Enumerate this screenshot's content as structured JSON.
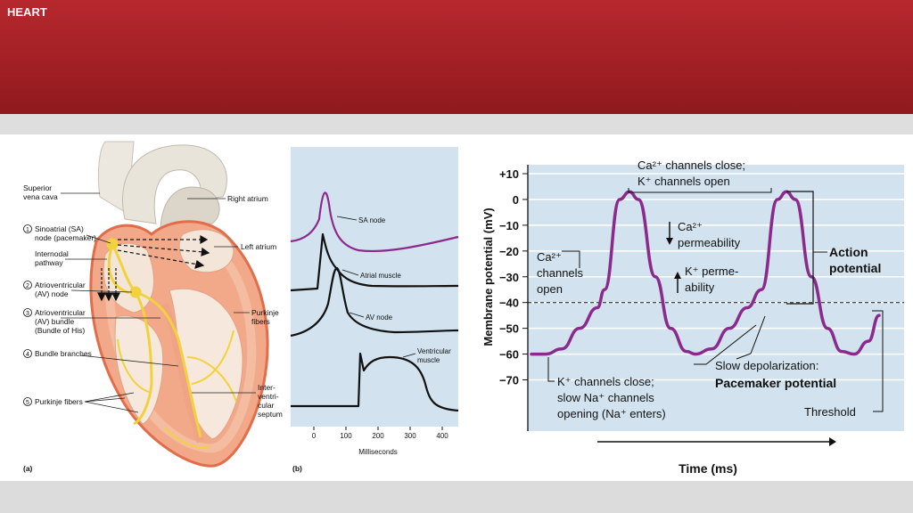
{
  "header": {
    "title": "HEART"
  },
  "panel_a": {
    "label": "(a)",
    "labels": {
      "superior_vena_cava_1": "Superior",
      "superior_vena_cava_2": "vena cava",
      "right_atrium": "Right atrium",
      "sa_num": "1",
      "sa_1": "Sinoatrial (SA)",
      "sa_2": "node (pacemaker)",
      "internodal_1": "Internodal",
      "internodal_2": "pathway",
      "left_atrium": "Left atrium",
      "av_num": "2",
      "av_1": "Atrioventricular",
      "av_2": "(AV) node",
      "bundle_num": "3",
      "bundle_1": "Atrioventricular",
      "bundle_2": "(AV) bundle",
      "bundle_3": "(Bundle of His)",
      "branches_num": "4",
      "branches": "Bundle branches",
      "purkinje_num": "5",
      "purkinje": "Purkinje fibers",
      "purkinje_r_1": "Purkinje",
      "purkinje_r_2": "fibers",
      "septum_1": "Inter-",
      "septum_2": "ventri-",
      "septum_3": "cular",
      "septum_4": "septum"
    }
  },
  "panel_b": {
    "label": "(b)",
    "traces": {
      "sa": "SA node",
      "atrial": "Atrial muscle",
      "av": "AV node",
      "vent_1": "Ventricular",
      "vent_2": "muscle"
    },
    "xlabel": "Milliseconds",
    "xticks": [
      "0",
      "100",
      "200",
      "300",
      "400"
    ],
    "colors": {
      "background": "#d2e3ef",
      "sa_trace": "#8b2a8c",
      "trace": "#111111"
    }
  },
  "chart_data": {
    "type": "line",
    "title": "",
    "xlabel": "Time (ms)",
    "ylabel": "Membrane potential (mV)",
    "ylim": [
      -75,
      15
    ],
    "y_ticks": [
      "+10",
      "0",
      "−10",
      "−20",
      "−30",
      "−40",
      "−50",
      "−60",
      "−70"
    ],
    "y_tick_values": [
      10,
      0,
      -10,
      -20,
      -30,
      -40,
      -50,
      -60,
      -70
    ],
    "threshold_mv": -40,
    "grid": true,
    "series": [
      {
        "values": [
          -60,
          -60,
          -58,
          -50,
          -42,
          -35,
          0,
          3,
          0,
          -30,
          -50,
          -59,
          -60,
          -58,
          -50,
          -42,
          -35,
          0,
          3,
          0,
          -30,
          -50,
          -59,
          -60,
          -55,
          -45
        ]
      }
    ],
    "annotations": {
      "ca_close_1": "Ca²⁺ channels close;",
      "ca_close_2": "K⁺ channels open",
      "ca_perm_1": "Ca²⁺",
      "ca_perm_2": "permeability",
      "k_perm_1": "K⁺ perme-",
      "k_perm_2": "ability",
      "ca_open_1": "Ca²⁺",
      "ca_open_2": "channels",
      "ca_open_3": "open",
      "action_1": "Action",
      "action_2": "potential",
      "k_close_1": "K⁺ channels close;",
      "k_close_2": "slow Na⁺ channels",
      "k_close_3": "opening (Na⁺ enters)",
      "slow_1": "Slow depolarization:",
      "slow_2": "Pacemaker potential",
      "threshold": "Threshold"
    },
    "colors": {
      "background": "#d2e3ef",
      "trace": "#8b2a8c",
      "grid": "#ffffff"
    }
  }
}
